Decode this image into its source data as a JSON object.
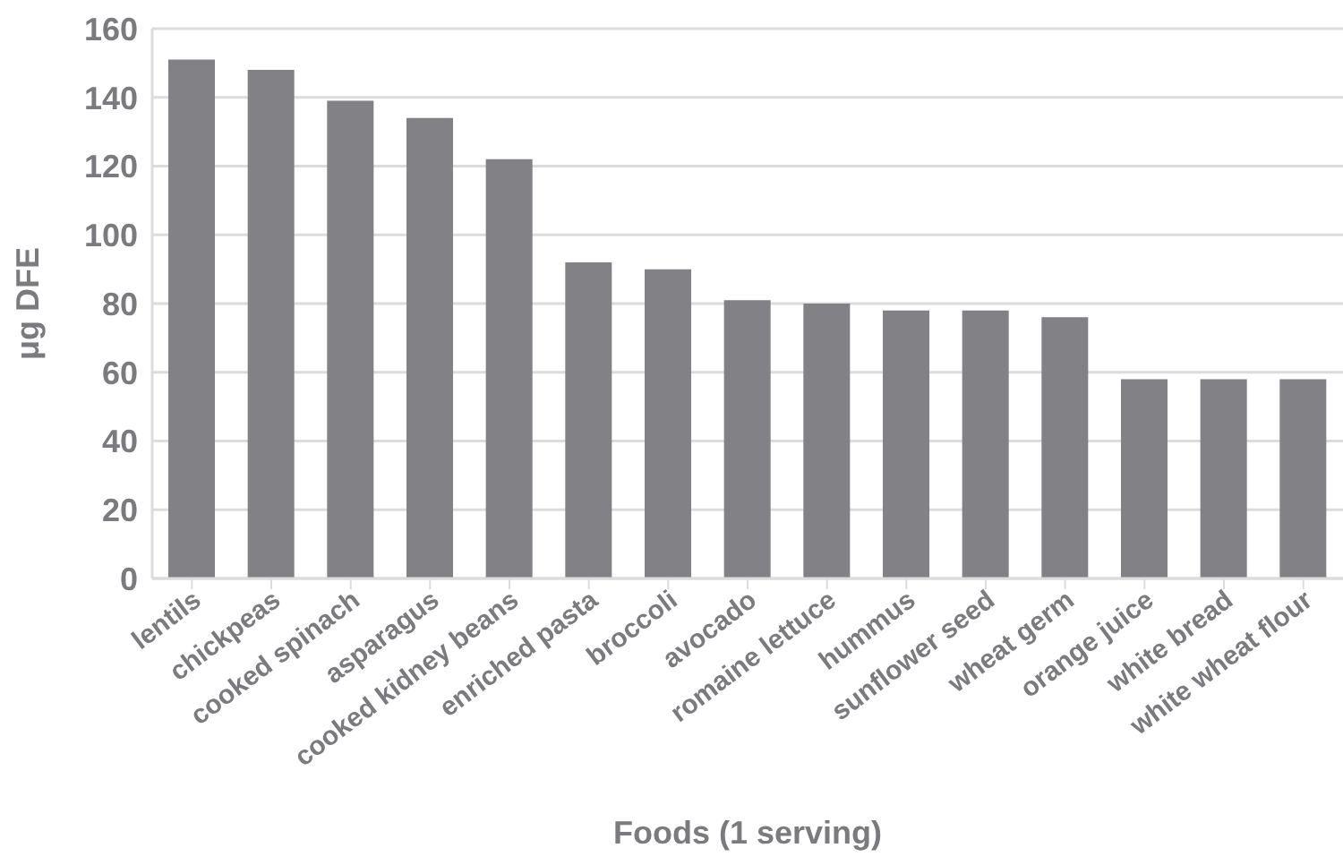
{
  "chart_data": {
    "type": "bar",
    "xlabel": "Foods (1 serving)",
    "ylabel": "μg DFE",
    "categories": [
      "lentils",
      "chickpeas",
      "cooked spinach",
      "asparagus",
      "cooked kidney beans",
      "enriched pasta",
      "broccoli",
      "avocado",
      "romaine lettuce",
      "hummus",
      "sunflower seed",
      "wheat germ",
      "orange juice",
      "white bread",
      "white wheat flour"
    ],
    "values": [
      151,
      148,
      139,
      134,
      122,
      92,
      90,
      81,
      80,
      78,
      78,
      76,
      58,
      58,
      58
    ],
    "color": "#818186",
    "ylim": [
      0,
      160
    ],
    "yticks": [
      0,
      20,
      40,
      60,
      80,
      100,
      120,
      140,
      160
    ],
    "grid": "y"
  }
}
